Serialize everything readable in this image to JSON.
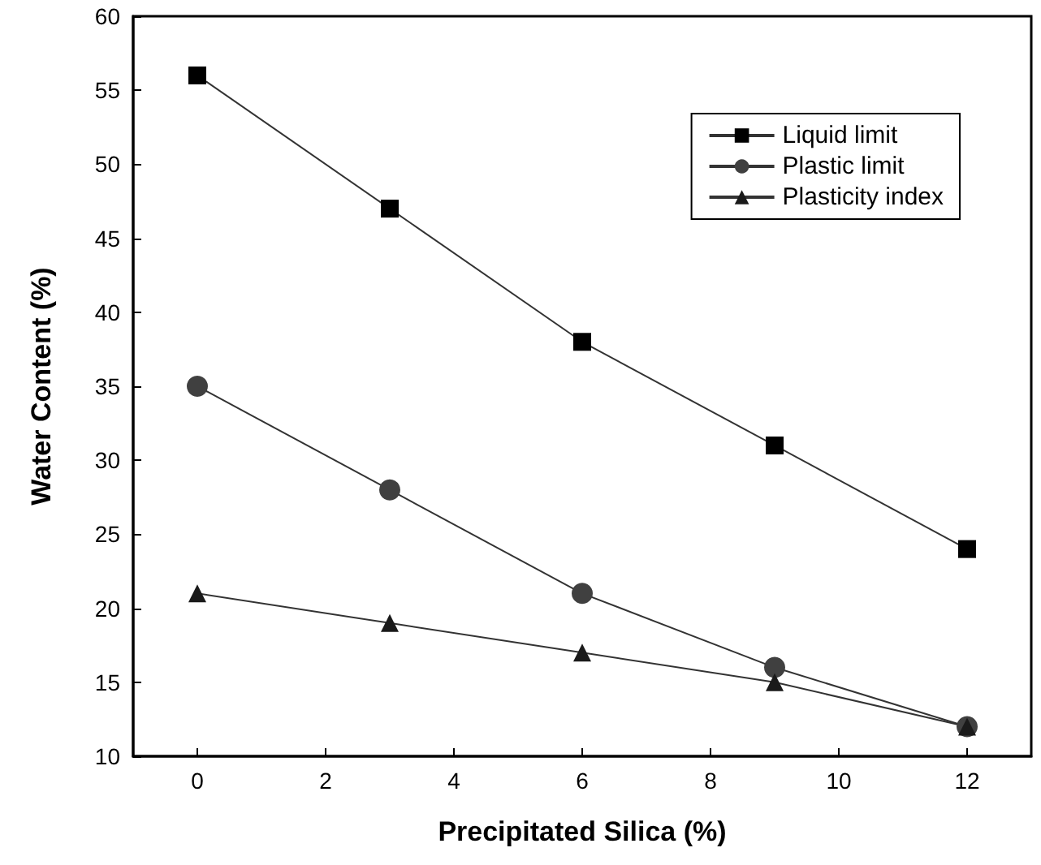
{
  "chart_data": {
    "type": "line",
    "xlabel": "Precipitated Silica (%)",
    "ylabel": "Water Content (%)",
    "x": [
      0,
      3,
      6,
      9,
      12
    ],
    "series": [
      {
        "name": "Liquid limit",
        "color": "#000000",
        "marker": "square",
        "values": [
          56,
          47,
          38,
          31,
          24
        ]
      },
      {
        "name": "Plastic limit",
        "color": "#404040",
        "marker": "circle",
        "values": [
          35,
          28,
          21,
          16,
          12
        ]
      },
      {
        "name": "Plasticity index",
        "color": "#1a1a1a",
        "marker": "triangle",
        "values": [
          21,
          19,
          17,
          15,
          12
        ]
      }
    ],
    "xlim": [
      -1,
      13
    ],
    "xticks": [
      0,
      2,
      4,
      6,
      8,
      10,
      12
    ],
    "ylim": [
      10,
      60
    ],
    "yticks": [
      10,
      15,
      20,
      25,
      30,
      35,
      40,
      45,
      50,
      55,
      60
    ],
    "legend": "top right",
    "grid": false,
    "line_style": "solid"
  }
}
